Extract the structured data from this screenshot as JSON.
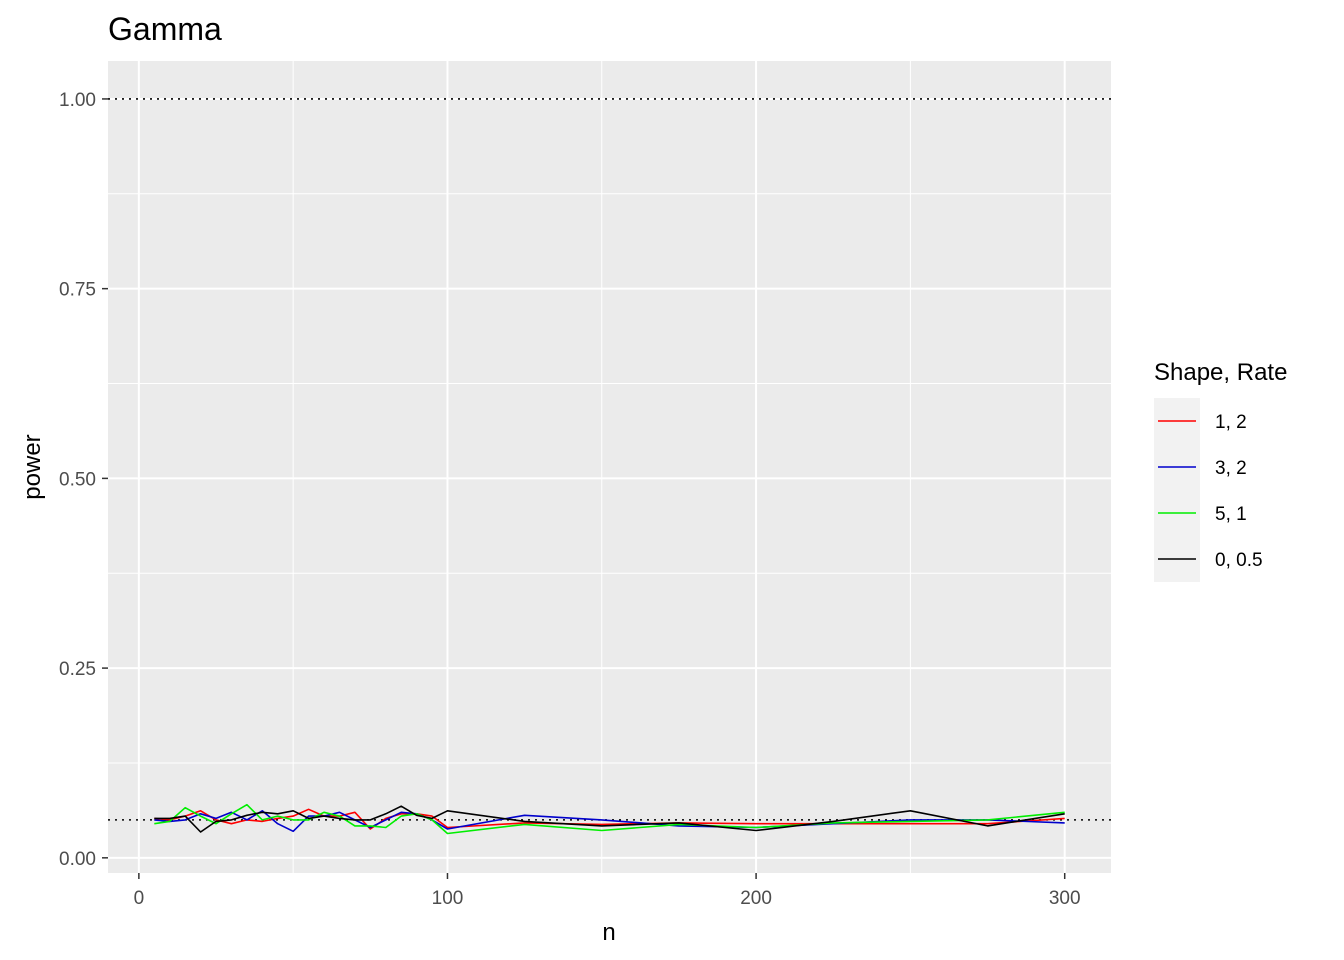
{
  "chart_data": {
    "type": "line",
    "title": "Gamma",
    "xlabel": "n",
    "ylabel": "power",
    "xlim": [
      -10,
      315
    ],
    "ylim": [
      -0.02,
      1.05
    ],
    "x_ticks": [
      0,
      100,
      200,
      300
    ],
    "x_tick_labels": [
      "0",
      "100",
      "200",
      "300"
    ],
    "y_ticks": [
      0,
      0.25,
      0.5,
      0.75,
      1.0
    ],
    "y_tick_labels": [
      "0.00",
      "0.25",
      "0.50",
      "0.75",
      "1.00"
    ],
    "grid": true,
    "reference_lines": [
      1.0,
      0.05
    ],
    "legend": {
      "title": "Shape, Rate",
      "position": "right"
    },
    "x": [
      5,
      10,
      15,
      20,
      25,
      30,
      35,
      40,
      45,
      50,
      55,
      60,
      65,
      70,
      75,
      80,
      85,
      90,
      95,
      100,
      125,
      150,
      175,
      200,
      225,
      250,
      275,
      300
    ],
    "series": [
      {
        "name": "1, 2",
        "color": "#FF0000",
        "values": [
          0.052,
          0.05,
          0.055,
          0.062,
          0.05,
          0.045,
          0.05,
          0.048,
          0.052,
          0.055,
          0.064,
          0.055,
          0.055,
          0.06,
          0.038,
          0.052,
          0.058,
          0.058,
          0.055,
          0.04,
          0.046,
          0.044,
          0.046,
          0.045,
          0.045,
          0.045,
          0.045,
          0.052
        ]
      },
      {
        "name": "3, 2",
        "color": "#0000CC",
        "values": [
          0.05,
          0.048,
          0.05,
          0.058,
          0.052,
          0.06,
          0.05,
          0.062,
          0.045,
          0.035,
          0.055,
          0.055,
          0.06,
          0.05,
          0.04,
          0.05,
          0.06,
          0.058,
          0.05,
          0.038,
          0.056,
          0.05,
          0.042,
          0.04,
          0.045,
          0.05,
          0.05,
          0.046
        ]
      },
      {
        "name": "5, 1",
        "color": "#00EE00",
        "values": [
          0.045,
          0.048,
          0.066,
          0.055,
          0.045,
          0.058,
          0.07,
          0.05,
          0.055,
          0.05,
          0.05,
          0.06,
          0.055,
          0.042,
          0.042,
          0.04,
          0.055,
          0.058,
          0.05,
          0.032,
          0.044,
          0.036,
          0.044,
          0.04,
          0.046,
          0.048,
          0.05,
          0.06
        ]
      },
      {
        "name": "0, 0.5",
        "color": "#000000",
        "values": [
          0.052,
          0.052,
          0.055,
          0.034,
          0.048,
          0.05,
          0.056,
          0.06,
          0.058,
          0.062,
          0.052,
          0.055,
          0.052,
          0.05,
          0.05,
          0.058,
          0.068,
          0.056,
          0.052,
          0.062,
          0.048,
          0.042,
          0.046,
          0.036,
          0.048,
          0.062,
          0.042,
          0.058
        ]
      }
    ]
  }
}
